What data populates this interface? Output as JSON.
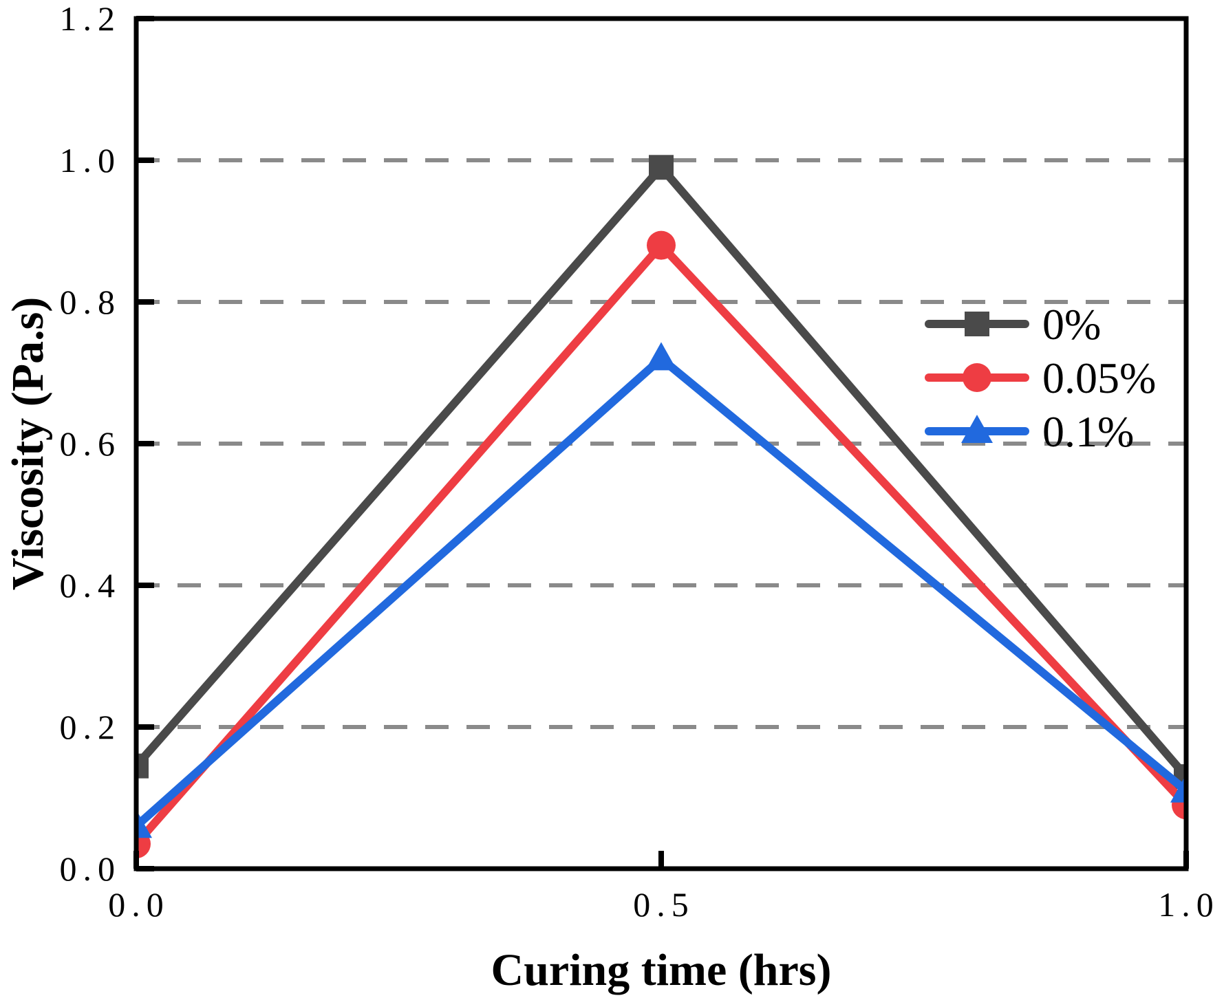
{
  "chart_data": {
    "type": "line",
    "title": "",
    "xlabel": "Curing time (hrs)",
    "ylabel": "Viscosity (Pa.s)",
    "x": [
      0,
      0.5,
      1
    ],
    "series": [
      {
        "name": "0%",
        "marker": "square",
        "color": "#4a4a4a",
        "values": [
          0.145,
          0.99,
          0.13
        ]
      },
      {
        "name": "0.05%",
        "marker": "circle",
        "color": "#ee3d43",
        "values": [
          0.035,
          0.88,
          0.09
        ]
      },
      {
        "name": "0.1%",
        "marker": "triangle",
        "color": "#2169de",
        "values": [
          0.06,
          0.72,
          0.11
        ]
      }
    ],
    "xlim": [
      0,
      1
    ],
    "ylim": [
      0,
      1.2
    ],
    "x_ticks": {
      "values": [
        0,
        0.5,
        1
      ],
      "labels": [
        "0.0",
        "0.5",
        "1.0"
      ]
    },
    "y_ticks": {
      "values": [
        0,
        0.2,
        0.4,
        0.6,
        0.8,
        1.0,
        1.2
      ],
      "labels": [
        "0.0",
        "0.2",
        "0.4",
        "0.6",
        "0.8",
        "1.0",
        "1.2"
      ]
    },
    "grid": {
      "show": true,
      "axis": "y",
      "values": [
        0.2,
        0.4,
        0.6,
        0.8,
        1.0
      ],
      "style": "dashed",
      "color": "#8a8a8a"
    },
    "legend": {
      "position": "right-center",
      "frame": false,
      "entries": [
        "0%",
        "0.05%",
        "0.1%"
      ]
    },
    "axis_color": "#000000",
    "background": "#ffffff"
  }
}
